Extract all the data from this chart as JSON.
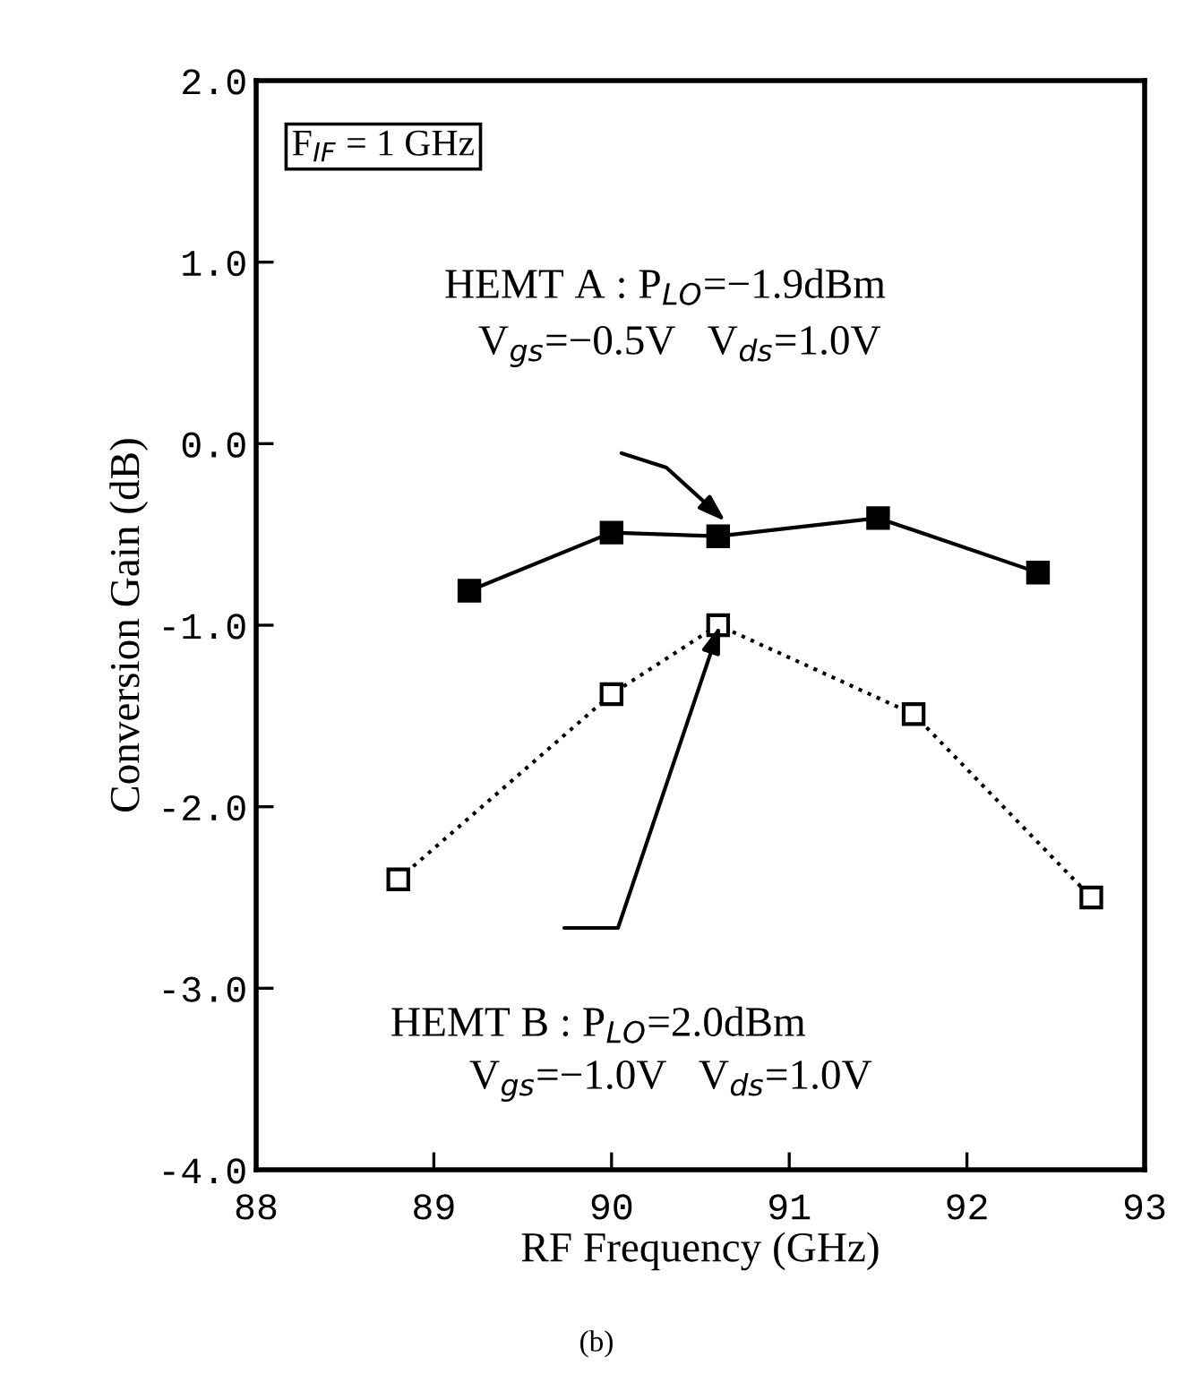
{
  "chart_data": {
    "type": "line",
    "xlabel": "RF Frequency (GHz)",
    "ylabel": "Conversion Gain (dB)",
    "xlim": [
      88,
      93
    ],
    "xticks": [
      88,
      89,
      90,
      91,
      92,
      93
    ],
    "ylim": [
      -4,
      2
    ],
    "yticks": [
      {
        "value": -4,
        "label": "-4.0"
      },
      {
        "value": -3,
        "label": "-3.0"
      },
      {
        "value": -2,
        "label": "-2.0"
      },
      {
        "value": -1,
        "label": "-1.0"
      },
      {
        "value": 0,
        "label": "0.0"
      },
      {
        "value": 1,
        "label": "1.0"
      },
      {
        "value": 2,
        "label": "2.0"
      }
    ],
    "grid": false,
    "legend": false,
    "marker": "square",
    "series": [
      {
        "color": "#000000",
        "line_style": "solid",
        "x": [
          89.2,
          90.0,
          90.6,
          91.5,
          92.4
        ],
        "values": [
          -0.81,
          -0.49,
          -0.51,
          -0.41,
          -0.71
        ]
      },
      {
        "color": "#000000",
        "line_style": "dotted",
        "x": [
          88.8,
          90.0,
          90.6,
          91.7,
          92.7
        ],
        "values": [
          -2.4,
          -1.38,
          -1.0,
          -1.49,
          -2.5
        ]
      }
    ],
    "annotations": [
      "F$_{IF}$ = 1 GHz",
      "HEMT A : P$_{LO}$=−1.9dBm",
      "V$_{gs}$=−0.5V   V$_{ds}$=1.0V",
      "HEMT B : P$_{LO}$=2.0dBm",
      "V$_{gs}$=−1.0V   V$_{ds}$=1.0V",
      "(b)"
    ]
  }
}
